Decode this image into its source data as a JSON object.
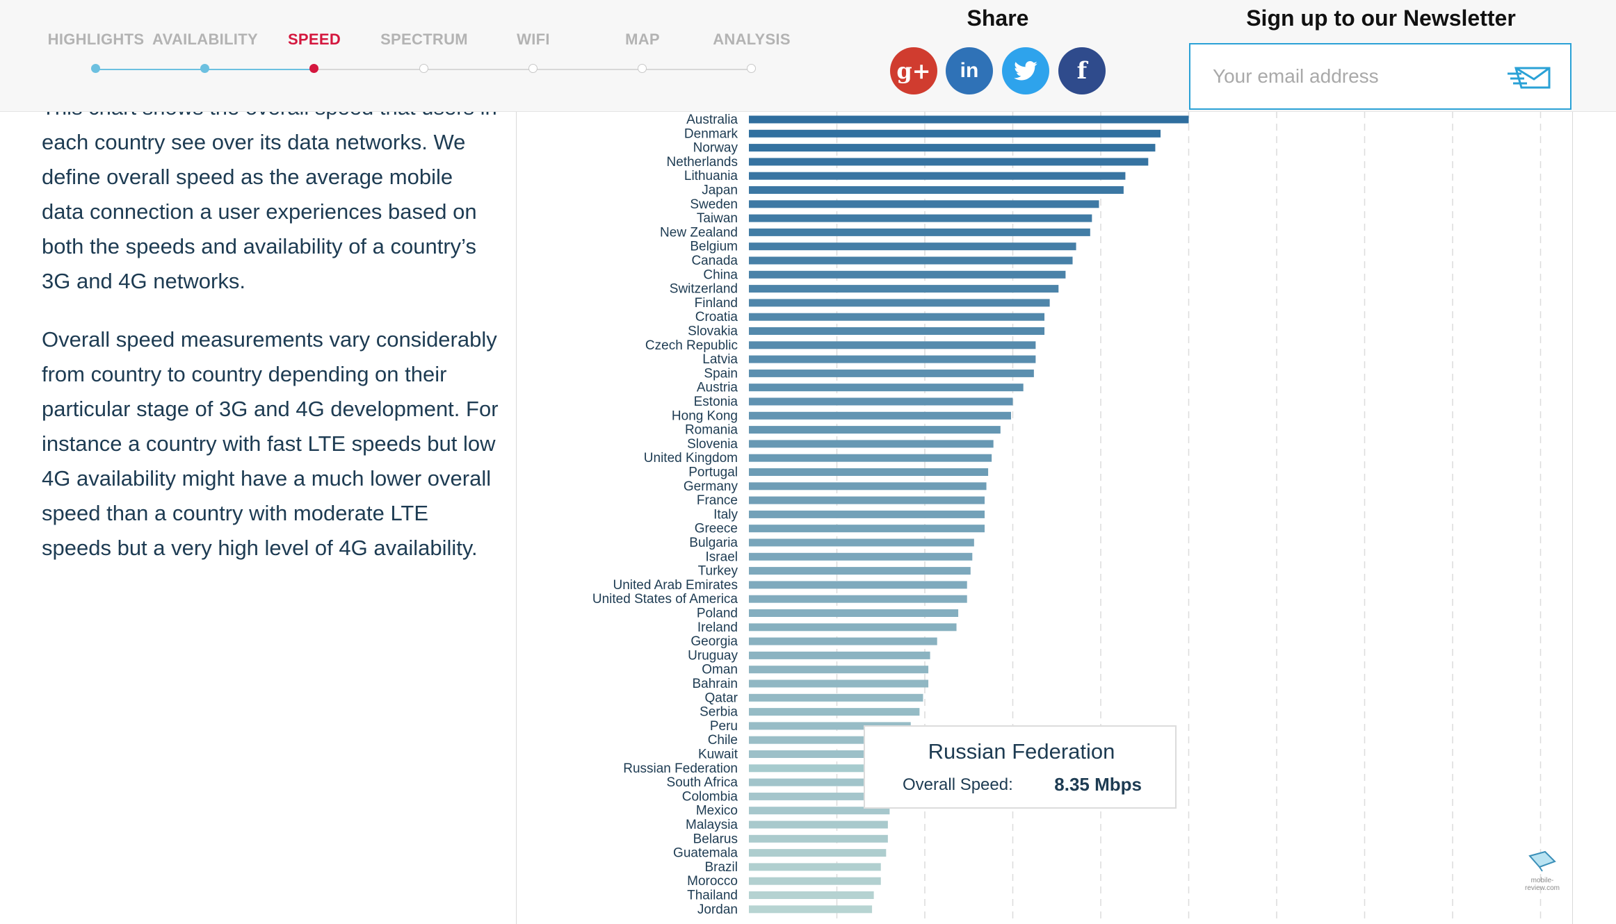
{
  "nav": {
    "items": [
      {
        "label": "HIGHLIGHTS",
        "state": "done"
      },
      {
        "label": "AVAILABILITY",
        "state": "done"
      },
      {
        "label": "SPEED",
        "state": "active"
      },
      {
        "label": "SPECTRUM",
        "state": "todo"
      },
      {
        "label": "WIFI",
        "state": "todo"
      },
      {
        "label": "MAP",
        "state": "todo"
      },
      {
        "label": "ANALYSIS",
        "state": "todo"
      }
    ]
  },
  "share": {
    "title": "Share",
    "buttons": [
      {
        "icon": "google-plus-icon",
        "glyph": "g+"
      },
      {
        "icon": "linkedin-icon",
        "glyph": "in"
      },
      {
        "icon": "twitter-icon",
        "glyph": ""
      },
      {
        "icon": "facebook-icon",
        "glyph": "f"
      }
    ]
  },
  "newsletter": {
    "title": "Sign up to our Newsletter",
    "placeholder": "Your email address"
  },
  "article": {
    "paragraph1": "This chart shows the overall speed that users in each country see over its data networks. We define overall speed as the average mobile data connection a user experiences based on both the speeds and availability of a country’s 3G and 4G networks.",
    "paragraph2": "Overall speed measurements vary considerably from country to country depending on their particular stage of 3G and 4G development. For instance a country with fast LTE speeds but low 4G availability might have a much lower overall speed than a country with moderate LTE speeds but a very high level of 4G availability."
  },
  "tooltip": {
    "title": "Russian Federation",
    "label": "Overall Speed:",
    "value": "8.35 Mbps"
  },
  "watermark": {
    "text": "mobile-review.com"
  },
  "colors": {
    "bar_dark": "#2f6e9e",
    "bar_light": "#b7d4d2",
    "accent": "#d4173e",
    "nav_progress": "#6cc0e0"
  },
  "chart_data": {
    "type": "bar",
    "orientation": "horizontal",
    "series": [
      {
        "name": "Overall Speed",
        "unit": "Mbps"
      }
    ],
    "categories": [
      "Australia",
      "Denmark",
      "Norway",
      "Netherlands",
      "Lithuania",
      "Japan",
      "Sweden",
      "Taiwan",
      "New Zealand",
      "Belgium",
      "Canada",
      "China",
      "Switzerland",
      "Finland",
      "Croatia",
      "Slovakia",
      "Czech Republic",
      "Latvia",
      "Spain",
      "Austria",
      "Estonia",
      "Hong Kong",
      "Romania",
      "Slovenia",
      "United Kingdom",
      "Portugal",
      "Germany",
      "France",
      "Italy",
      "Greece",
      "Bulgaria",
      "Israel",
      "Turkey",
      "United Arab Emirates",
      "United States of America",
      "Poland",
      "Ireland",
      "Georgia",
      "Uruguay",
      "Oman",
      "Bahrain",
      "Qatar",
      "Serbia",
      "Peru",
      "Chile",
      "Kuwait",
      "Russian Federation",
      "South Africa",
      "Colombia",
      "Mexico",
      "Malaysia",
      "Belarus",
      "Guatemala",
      "Brazil",
      "Morocco",
      "Thailand",
      "Jordan"
    ],
    "values": [
      25.0,
      23.4,
      23.1,
      22.7,
      21.4,
      21.3,
      19.9,
      19.5,
      19.4,
      18.6,
      18.4,
      18.0,
      17.6,
      17.1,
      16.8,
      16.8,
      16.3,
      16.3,
      16.2,
      15.6,
      15.0,
      14.9,
      14.3,
      13.9,
      13.8,
      13.6,
      13.5,
      13.4,
      13.4,
      13.4,
      12.8,
      12.7,
      12.6,
      12.4,
      12.4,
      11.9,
      11.8,
      10.7,
      10.3,
      10.2,
      10.2,
      9.9,
      9.7,
      9.2,
      8.8,
      8.6,
      8.35,
      8.3,
      8.2,
      8.0,
      7.9,
      7.9,
      7.8,
      7.5,
      7.5,
      7.1,
      7.0
    ],
    "xlim": [
      0,
      45
    ],
    "x_gridlines": [
      5,
      10,
      15,
      20,
      25,
      30,
      35,
      40,
      45
    ],
    "highlighted": "Russian Federation",
    "grid": true,
    "legend": "none"
  }
}
